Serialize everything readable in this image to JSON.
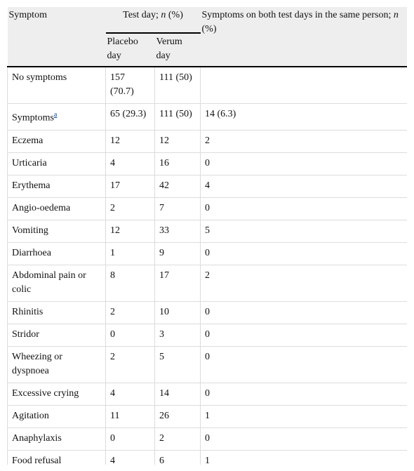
{
  "header": {
    "symptom": "Symptom",
    "test_day": [
      "Test day; ",
      "n",
      " (%)"
    ],
    "both": [
      "Symptoms on both test days in the same person; ",
      "n",
      " (%)"
    ],
    "placebo": "Placebo day",
    "verum": "Verum day"
  },
  "rows": [
    {
      "symptom": "No symptoms",
      "placebo": "157 (70.7)",
      "verum": "111 (50)"
    },
    {
      "symptom": "Symptoms",
      "footnote": "a",
      "placebo": "65 (29.3)",
      "verum": "111 (50)",
      "both": "14 (6.3)"
    },
    {
      "symptom": "Eczema",
      "placebo": 12,
      "verum": 12,
      "both": 2
    },
    {
      "symptom": "Urticaria",
      "placebo": 4,
      "verum": 16,
      "both": 0
    },
    {
      "symptom": "Erythema",
      "placebo": 17,
      "verum": 42,
      "both": 4
    },
    {
      "symptom": "Angio-oedema",
      "placebo": 2,
      "verum": 7,
      "both": 0
    },
    {
      "symptom": "Vomiting",
      "placebo": 12,
      "verum": 33,
      "both": 5
    },
    {
      "symptom": "Diarrhoea",
      "placebo": 1,
      "verum": 9,
      "both": 0
    },
    {
      "symptom": "Abdominal pain or colic",
      "placebo": 8,
      "verum": 17,
      "both": 2
    },
    {
      "symptom": "Rhinitis",
      "placebo": 2,
      "verum": 10,
      "both": 0
    },
    {
      "symptom": "Stridor",
      "placebo": 0,
      "verum": 3,
      "both": 0
    },
    {
      "symptom": "Wheezing or dyspnoea",
      "placebo": 2,
      "verum": 5,
      "both": 0
    },
    {
      "symptom": "Excessive crying",
      "placebo": 4,
      "verum": 14,
      "both": 0
    },
    {
      "symptom": "Agitation",
      "placebo": 11,
      "verum": 26,
      "both": 1
    },
    {
      "symptom": "Anaphylaxis",
      "placebo": 0,
      "verum": 2,
      "both": 0
    },
    {
      "symptom": "Food refusal",
      "placebo": 4,
      "verum": 6,
      "both": 1
    }
  ]
}
